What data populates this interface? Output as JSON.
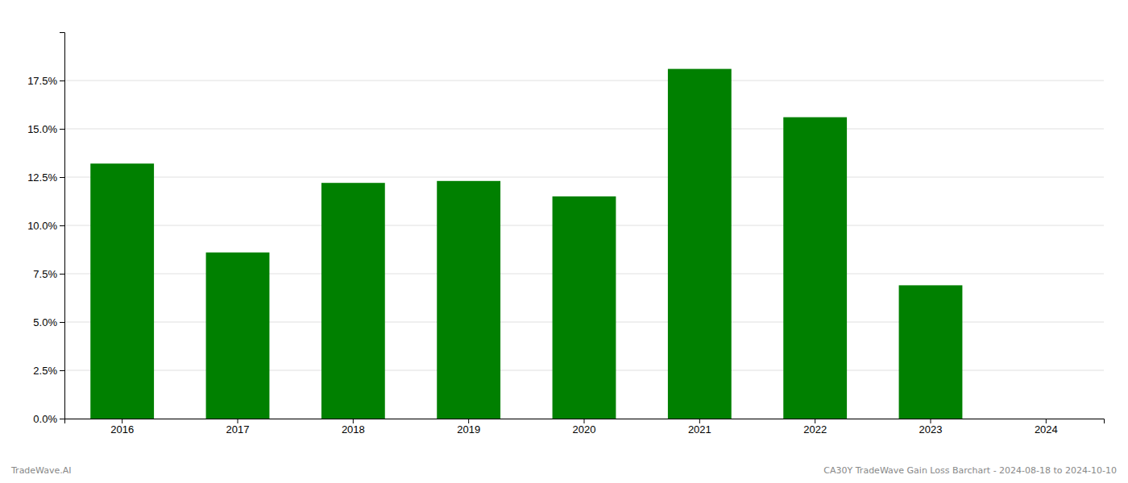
{
  "chart_data": {
    "type": "bar",
    "categories": [
      "2016",
      "2017",
      "2018",
      "2019",
      "2020",
      "2021",
      "2022",
      "2023",
      "2024"
    ],
    "values": [
      0.132,
      0.086,
      0.122,
      0.123,
      0.115,
      0.181,
      0.156,
      0.069,
      0.0
    ],
    "color": "#008000",
    "ylim": [
      0,
      0.2
    ],
    "yticks": [
      {
        "value": 0.0,
        "label": "0.0%"
      },
      {
        "value": 0.025,
        "label": "2.5%"
      },
      {
        "value": 0.05,
        "label": "5.0%"
      },
      {
        "value": 0.075,
        "label": "7.5%"
      },
      {
        "value": 0.1,
        "label": "10.0%"
      },
      {
        "value": 0.125,
        "label": "12.5%"
      },
      {
        "value": 0.15,
        "label": "15.0%"
      },
      {
        "value": 0.175,
        "label": "17.5%"
      }
    ],
    "grid": true,
    "annotations": [
      "TradeWave.AI",
      "CA30Y TradeWave Gain Loss Barchart - 2024-08-18 to 2024-10-10"
    ]
  }
}
